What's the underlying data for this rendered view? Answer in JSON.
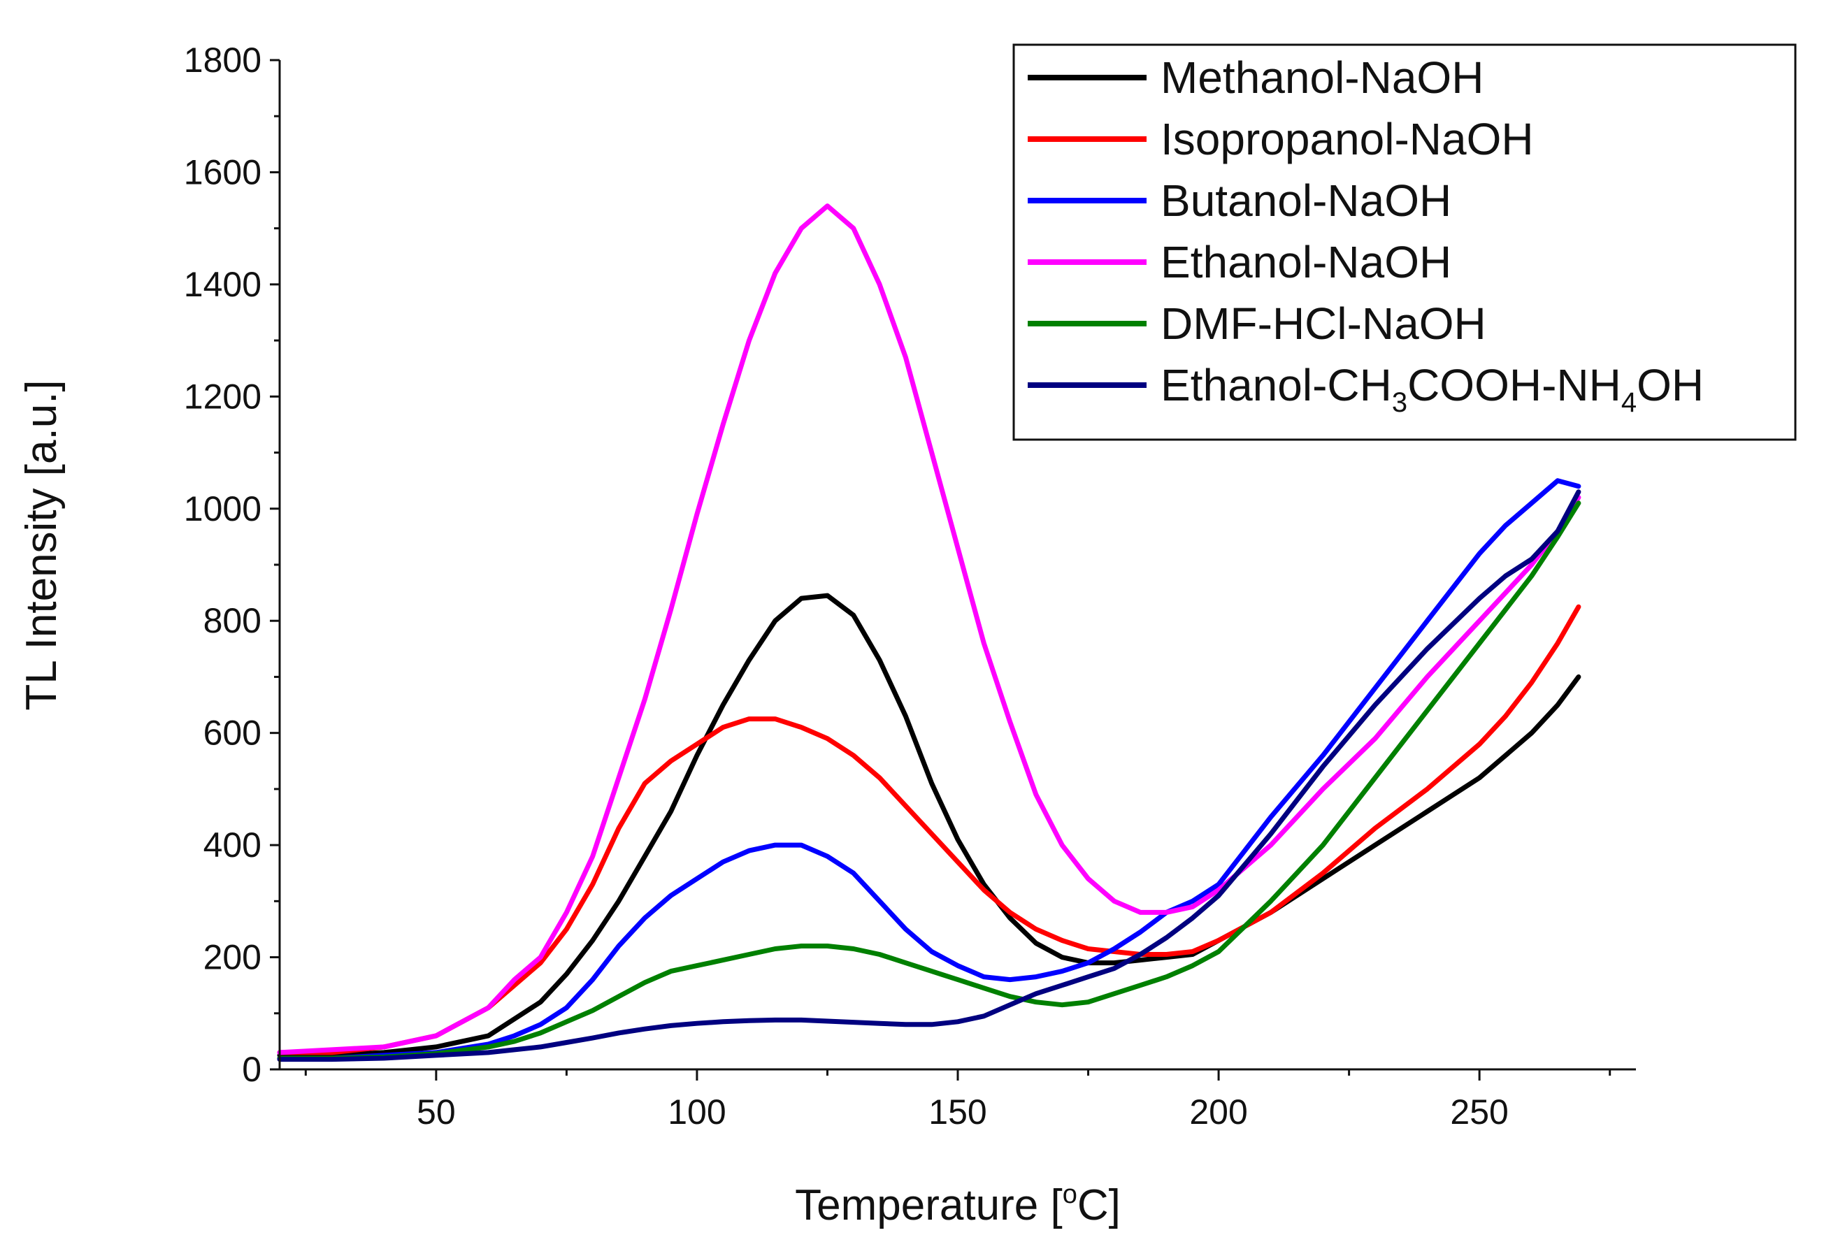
{
  "chart_data": {
    "type": "line",
    "title": "",
    "xlabel": "Temperature [°C]",
    "xlabel_parts": {
      "main": "Temperature [",
      "sup": "o",
      "end": "C]"
    },
    "ylabel": "TL Intensity [a.u.]",
    "xlim": [
      20,
      280
    ],
    "ylim": [
      0,
      1800
    ],
    "x_ticks": [
      50,
      100,
      150,
      200,
      250
    ],
    "x_tick_labels": [
      "50",
      "100",
      "150",
      "200",
      "250"
    ],
    "y_ticks": [
      0,
      200,
      400,
      600,
      800,
      1000,
      1200,
      1400,
      1600,
      1800
    ],
    "y_tick_labels": [
      "0",
      "200",
      "400",
      "600",
      "800",
      "1000",
      "1200",
      "1400",
      "1600",
      "1800"
    ],
    "grid": false,
    "legend_position": "top-right",
    "x": [
      20,
      30,
      40,
      50,
      60,
      65,
      70,
      75,
      80,
      85,
      90,
      95,
      100,
      105,
      110,
      115,
      120,
      125,
      130,
      135,
      140,
      145,
      150,
      155,
      160,
      165,
      170,
      175,
      180,
      185,
      190,
      195,
      200,
      210,
      220,
      230,
      240,
      250,
      255,
      260,
      265,
      269
    ],
    "series": [
      {
        "name": "Methanol-NaOH",
        "label_parts": [
          "Methanol-NaOH"
        ],
        "color": "#000000",
        "values": [
          25,
          25,
          30,
          40,
          60,
          90,
          120,
          170,
          230,
          300,
          380,
          460,
          560,
          650,
          730,
          800,
          840,
          845,
          810,
          730,
          630,
          510,
          410,
          330,
          270,
          225,
          200,
          190,
          190,
          195,
          200,
          205,
          230,
          280,
          340,
          400,
          460,
          520,
          560,
          600,
          650,
          700
        ]
      },
      {
        "name": "Isopropanol-NaOH",
        "label_parts": [
          "Isopropanol-NaOH"
        ],
        "color": "#ff0000",
        "values": [
          30,
          30,
          40,
          60,
          110,
          150,
          190,
          250,
          330,
          430,
          510,
          550,
          580,
          610,
          625,
          625,
          610,
          590,
          560,
          520,
          470,
          420,
          370,
          320,
          280,
          250,
          230,
          215,
          210,
          205,
          205,
          210,
          230,
          280,
          350,
          430,
          500,
          580,
          630,
          690,
          760,
          825
        ]
      },
      {
        "name": "Butanol-NaOH",
        "label_parts": [
          "Butanol-NaOH"
        ],
        "color": "#0000ff",
        "values": [
          20,
          20,
          25,
          30,
          45,
          60,
          80,
          110,
          160,
          220,
          270,
          310,
          340,
          370,
          390,
          400,
          400,
          380,
          350,
          300,
          250,
          210,
          185,
          165,
          160,
          165,
          175,
          190,
          215,
          245,
          280,
          300,
          330,
          450,
          560,
          680,
          800,
          920,
          970,
          1010,
          1050,
          1040
        ]
      },
      {
        "name": "Ethanol-NaOH",
        "label_parts": [
          "Ethanol-NaOH"
        ],
        "color": "#ff00ff",
        "values": [
          30,
          35,
          40,
          60,
          110,
          160,
          200,
          280,
          380,
          520,
          660,
          820,
          990,
          1150,
          1300,
          1420,
          1500,
          1540,
          1500,
          1400,
          1270,
          1100,
          930,
          760,
          620,
          490,
          400,
          340,
          300,
          280,
          280,
          290,
          320,
          400,
          500,
          590,
          700,
          800,
          850,
          900,
          960,
          1020
        ]
      },
      {
        "name": "DMF-HCl-NaOH",
        "label_parts": [
          "DMF-HCl-NaOH"
        ],
        "color": "#008000",
        "values": [
          20,
          20,
          22,
          28,
          40,
          50,
          65,
          85,
          105,
          130,
          155,
          175,
          185,
          195,
          205,
          215,
          220,
          220,
          215,
          205,
          190,
          175,
          160,
          145,
          130,
          120,
          115,
          120,
          135,
          150,
          165,
          185,
          210,
          300,
          400,
          520,
          640,
          760,
          820,
          880,
          950,
          1010
        ]
      },
      {
        "name": "Ethanol-CH3COOH-NH4OH",
        "label_parts": [
          "Ethanol-CH",
          "3",
          "COOH-NH",
          "4",
          "OH"
        ],
        "color": "#000080",
        "values": [
          18,
          18,
          20,
          25,
          30,
          35,
          40,
          48,
          56,
          65,
          72,
          78,
          82,
          85,
          87,
          88,
          88,
          86,
          84,
          82,
          80,
          80,
          85,
          95,
          115,
          135,
          150,
          165,
          180,
          205,
          235,
          270,
          310,
          420,
          540,
          650,
          750,
          840,
          880,
          910,
          960,
          1030
        ]
      }
    ]
  }
}
